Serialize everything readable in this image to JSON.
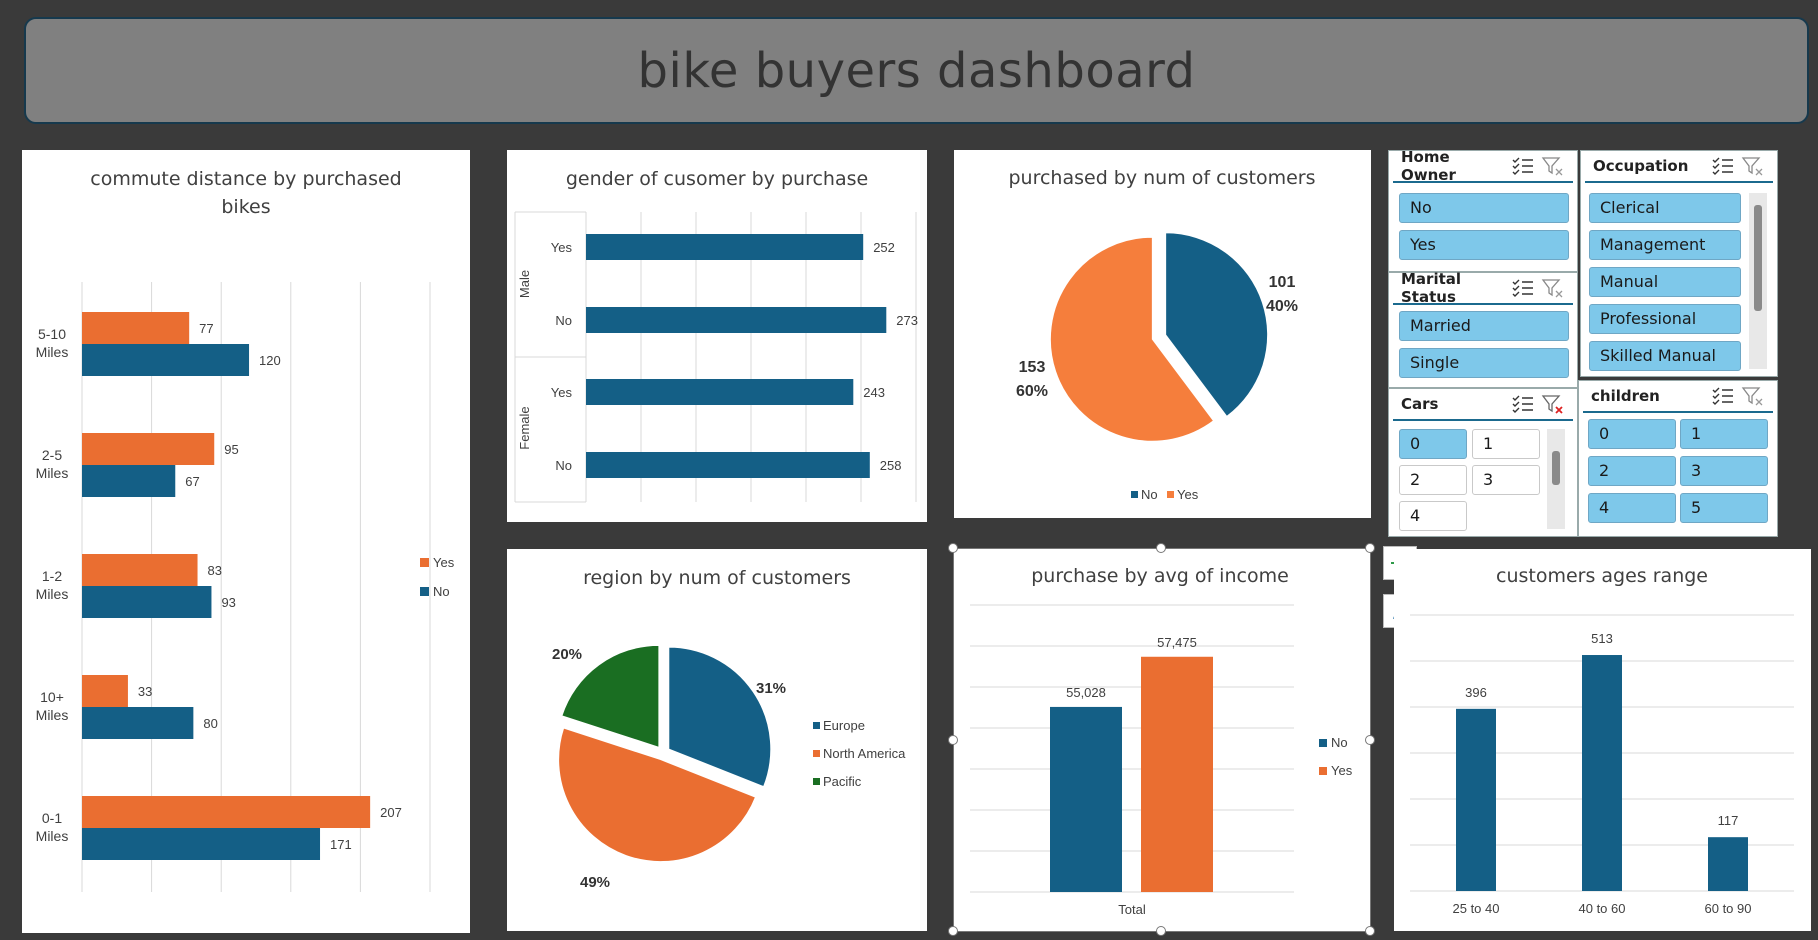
{
  "dashboard": {
    "title": "bike buyers dashboard"
  },
  "colors": {
    "no": "#145f86",
    "yes": "#ea6e31",
    "pacific": "#1a6e22",
    "yes_pie": "#f57e3c"
  },
  "chart_data": [
    {
      "id": "commute",
      "type": "bar",
      "orientation": "horizontal",
      "title": [
        "commute distance by purchased",
        "bikes"
      ],
      "categories": [
        [
          "5-10",
          "Miles"
        ],
        [
          "2-5",
          "Miles"
        ],
        [
          "1-2",
          "Miles"
        ],
        [
          "10+",
          "Miles"
        ],
        [
          "0-1",
          "Miles"
        ]
      ],
      "series": [
        {
          "name": "Yes",
          "values": [
            77,
            95,
            83,
            33,
            207
          ]
        },
        {
          "name": "No",
          "values": [
            120,
            67,
            93,
            80,
            171
          ]
        }
      ],
      "xlim": [
        0,
        250
      ],
      "grid": true,
      "legend": "right"
    },
    {
      "id": "gender",
      "type": "bar",
      "orientation": "horizontal",
      "title": "gender of cusomer by purchase",
      "groups": [
        {
          "name": "Male",
          "categories": [
            "Yes",
            "No"
          ],
          "values": [
            252,
            273
          ]
        },
        {
          "name": "Female",
          "categories": [
            "Yes",
            "No"
          ],
          "values": [
            243,
            258
          ]
        }
      ],
      "xlim": [
        0,
        300
      ],
      "grid": true
    },
    {
      "id": "purchased",
      "type": "pie",
      "title": "purchased by num of customers",
      "labels": [
        "No",
        "Yes"
      ],
      "values": [
        101,
        153
      ],
      "percents": [
        "40%",
        "60%"
      ],
      "legend": "bottom"
    },
    {
      "id": "region",
      "type": "pie",
      "title": "region by num of customers",
      "labels": [
        "Europe",
        "North America",
        "Pacific"
      ],
      "values": [
        31,
        49,
        20
      ],
      "percents": [
        "31%",
        "49%",
        "20%"
      ],
      "legend": "right"
    },
    {
      "id": "income",
      "type": "bar",
      "title": "purchase by avg of income",
      "categories": [
        "Total"
      ],
      "series": [
        {
          "name": "No",
          "values": [
            55028
          ],
          "label": "55,028"
        },
        {
          "name": "Yes",
          "values": [
            57475
          ],
          "label": "57,475"
        }
      ],
      "ylim": [
        46000,
        60000
      ],
      "grid": true,
      "legend": "right"
    },
    {
      "id": "ages",
      "type": "bar",
      "title": "customers ages range",
      "categories": [
        "25 to 40",
        "40 to 60",
        "60 to 90"
      ],
      "values": [
        396,
        513,
        117
      ],
      "ylim": [
        0,
        600
      ],
      "grid": true
    }
  ],
  "slicers": {
    "home_owner": {
      "title": "Home Owner",
      "items": [
        "No",
        "Yes"
      ]
    },
    "marital_status": {
      "title": "Marital Status",
      "items": [
        "Married",
        "Single"
      ]
    },
    "cars": {
      "title": "Cars",
      "items": [
        "0",
        "1",
        "2",
        "3",
        "4"
      ]
    },
    "occupation": {
      "title": "Occupation",
      "items": [
        "Clerical",
        "Management",
        "Manual",
        "Professional",
        "Skilled Manual"
      ]
    },
    "children": {
      "title": "children",
      "items": [
        "0",
        "1",
        "2",
        "3",
        "4",
        "5"
      ]
    }
  }
}
